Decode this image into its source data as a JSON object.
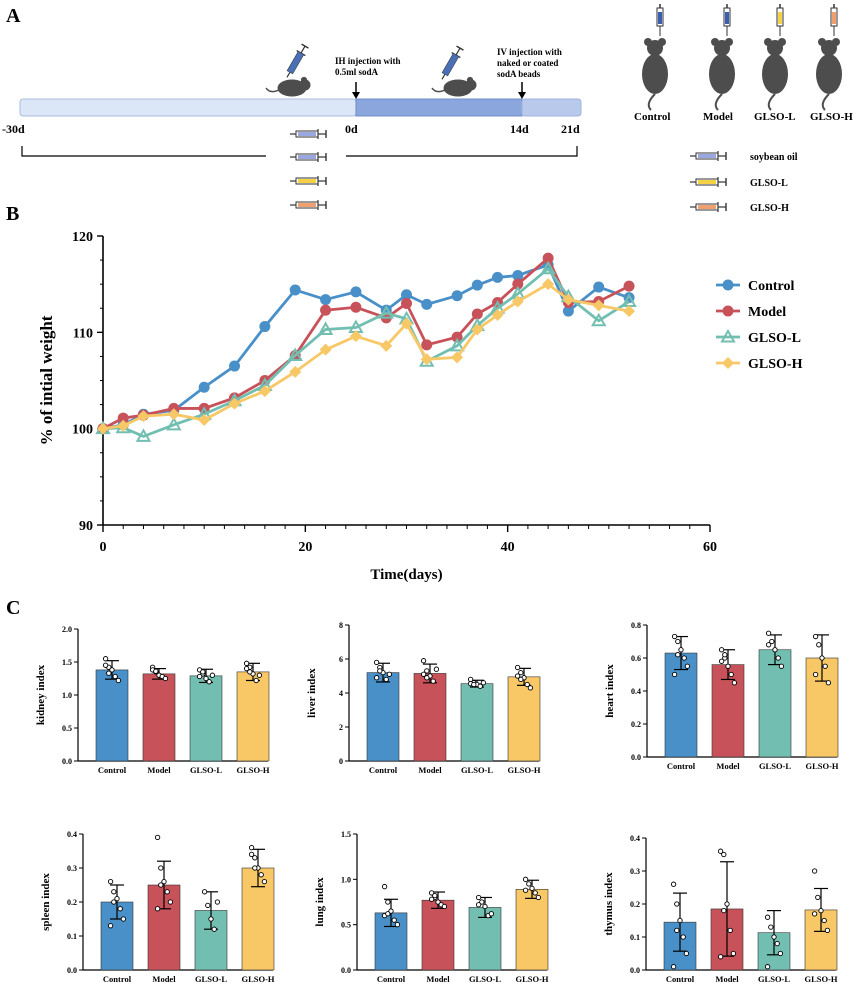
{
  "colors": {
    "control": "#4a90c8",
    "model": "#c8525a",
    "glso_l": "#72bfb1",
    "glso_h": "#f8c766",
    "timeline_light": "#dbe6f6",
    "timeline_dark": "#8aa6dc",
    "mouse": "#4d4d4d"
  },
  "panel_a": {
    "label": "A",
    "ih_note": [
      "IH injection with",
      "0.5ml sodA"
    ],
    "iv_note": [
      "IV injection with",
      "naked or coated",
      "sodA beads"
    ],
    "ticks": [
      "-30d",
      "0d",
      "14d",
      "21d"
    ],
    "legend_items": [
      "soybean oil",
      "GLSO-L",
      "GLSO-H"
    ],
    "groups": [
      "Control",
      "Model",
      "GLSO-L",
      "GLSO-H"
    ]
  },
  "panel_b": {
    "label": "B"
  },
  "panel_c": {
    "label": "C"
  },
  "chart_data": [
    {
      "id": "weight",
      "type": "line",
      "title": "",
      "xlabel": "Time(days)",
      "ylabel": "% of intial weight",
      "xlim": [
        0,
        60
      ],
      "ylim": [
        90,
        120
      ],
      "xticks": [
        0,
        20,
        40,
        60
      ],
      "yticks": [
        90,
        100,
        110,
        120
      ],
      "legend_position": "right",
      "series": [
        {
          "name": "Control",
          "marker": "circle",
          "x": [
            0,
            2,
            4,
            7,
            10,
            13,
            16,
            19,
            22,
            25,
            28,
            30,
            32,
            35,
            37,
            39,
            41,
            44,
            46,
            49,
            52
          ],
          "y": [
            100,
            100.4,
            101.5,
            101.9,
            104.3,
            106.5,
            110.6,
            114.4,
            113.4,
            114.2,
            112.3,
            113.9,
            112.9,
            113.8,
            114.9,
            115.7,
            115.9,
            117,
            112.2,
            114.7,
            113.6
          ]
        },
        {
          "name": "Model",
          "marker": "circle",
          "x": [
            0,
            2,
            4,
            7,
            10,
            13,
            16,
            19,
            22,
            25,
            28,
            30,
            32,
            35,
            37,
            39,
            41,
            44,
            46,
            49,
            52
          ],
          "y": [
            100,
            101.1,
            101.4,
            102.1,
            102.1,
            103.2,
            105,
            107.6,
            112.3,
            112.6,
            111.5,
            113,
            108.7,
            109.5,
            111.9,
            113.1,
            115,
            117.7,
            113.1,
            113.2,
            114.8
          ]
        },
        {
          "name": "GLSO-L",
          "marker": "triangle",
          "x": [
            0,
            2,
            4,
            7,
            10,
            13,
            16,
            19,
            22,
            25,
            28,
            30,
            32,
            35,
            37,
            39,
            41,
            44,
            46,
            49,
            52
          ],
          "y": [
            100,
            100.1,
            99.2,
            100.4,
            101.5,
            102.9,
            104.5,
            107.6,
            110.3,
            110.5,
            112,
            111.4,
            107,
            108.6,
            110.7,
            112.5,
            114,
            116.6,
            113.7,
            111.2,
            113.2
          ]
        },
        {
          "name": "GLSO-H",
          "marker": "diamond",
          "x": [
            0,
            2,
            4,
            7,
            10,
            13,
            16,
            19,
            22,
            25,
            28,
            30,
            32,
            35,
            37,
            39,
            41,
            44,
            46,
            49,
            52
          ],
          "y": [
            100,
            100.3,
            101.3,
            101.5,
            100.9,
            102.6,
            103.9,
            105.9,
            108.2,
            109.6,
            108.6,
            110.9,
            107.2,
            107.4,
            110.3,
            111.8,
            113.2,
            115,
            113.4,
            112.8,
            112.2
          ]
        }
      ]
    },
    {
      "id": "kidney",
      "type": "bar",
      "ylabel": "kidney index",
      "categories": [
        "Control",
        "Model",
        "GLSO-L",
        "GLSO-H"
      ],
      "values": [
        1.38,
        1.32,
        1.29,
        1.35
      ],
      "errors": [
        0.14,
        0.08,
        0.1,
        0.13
      ],
      "ylim": [
        0,
        2.0
      ],
      "yticks": [
        0.0,
        0.5,
        1.0,
        1.5,
        2.0
      ],
      "tick_decimals": 1,
      "points": [
        [
          1.55,
          1.42,
          1.38,
          1.28,
          1.22,
          1.45,
          1.33
        ],
        [
          1.42,
          1.35,
          1.3,
          1.28,
          1.25,
          1.38,
          1.36
        ],
        [
          1.38,
          1.32,
          1.25,
          1.2,
          1.3,
          1.28,
          1.35
        ],
        [
          1.48,
          1.42,
          1.32,
          1.22,
          1.3,
          1.4,
          1.35
        ]
      ]
    },
    {
      "id": "liver",
      "type": "bar",
      "ylabel": "liver index",
      "categories": [
        "Control",
        "Model",
        "GLSO-L",
        "GLSO-H"
      ],
      "values": [
        5.2,
        5.15,
        4.55,
        4.95
      ],
      "errors": [
        0.55,
        0.55,
        0.2,
        0.5
      ],
      "ylim": [
        0,
        8
      ],
      "yticks": [
        0,
        2,
        4,
        6,
        8
      ],
      "tick_decimals": 0,
      "points": [
        [
          5.8,
          5.5,
          5.2,
          4.8,
          5.1,
          4.9,
          5.3
        ],
        [
          5.9,
          5.3,
          5.0,
          4.7,
          5.4,
          5.1,
          4.9
        ],
        [
          4.8,
          4.6,
          4.5,
          4.4,
          4.6,
          4.55,
          4.5
        ],
        [
          5.5,
          5.2,
          4.9,
          4.5,
          4.3,
          5.0,
          4.8
        ]
      ]
    },
    {
      "id": "heart",
      "type": "bar",
      "ylabel": "heart index",
      "categories": [
        "Control",
        "Model",
        "GLSO-L",
        "GLSO-H"
      ],
      "values": [
        0.63,
        0.56,
        0.65,
        0.6
      ],
      "errors": [
        0.1,
        0.09,
        0.09,
        0.14
      ],
      "ylim": [
        0,
        0.8
      ],
      "yticks": [
        0.0,
        0.2,
        0.4,
        0.6,
        0.8
      ],
      "tick_decimals": 1,
      "points": [
        [
          0.73,
          0.7,
          0.65,
          0.6,
          0.55,
          0.5,
          0.62
        ],
        [
          0.65,
          0.6,
          0.55,
          0.5,
          0.45,
          0.58,
          0.62
        ],
        [
          0.75,
          0.7,
          0.65,
          0.6,
          0.55,
          0.68
        ],
        [
          0.73,
          0.68,
          0.6,
          0.55,
          0.45,
          0.5
        ]
      ]
    },
    {
      "id": "spleen",
      "type": "bar",
      "ylabel": "spleen index",
      "categories": [
        "Control",
        "Model",
        "GLSO-L",
        "GLSO-H"
      ],
      "values": [
        0.2,
        0.25,
        0.175,
        0.3
      ],
      "errors": [
        0.05,
        0.07,
        0.055,
        0.055
      ],
      "ylim": [
        0,
        0.4
      ],
      "yticks": [
        0.0,
        0.1,
        0.2,
        0.3,
        0.4
      ],
      "tick_decimals": 1,
      "points": [
        [
          0.26,
          0.23,
          0.21,
          0.18,
          0.15,
          0.13,
          0.2
        ],
        [
          0.39,
          0.3,
          0.26,
          0.23,
          0.2,
          0.18,
          0.25
        ],
        [
          0.23,
          0.19,
          0.15,
          0.12,
          0.2
        ],
        [
          0.36,
          0.33,
          0.3,
          0.28,
          0.26,
          0.34,
          0.3
        ]
      ]
    },
    {
      "id": "lung",
      "type": "bar",
      "ylabel": "lung index",
      "categories": [
        "Control",
        "Model",
        "GLSO-L",
        "GLSO-H"
      ],
      "values": [
        0.63,
        0.77,
        0.69,
        0.89
      ],
      "errors": [
        0.15,
        0.09,
        0.11,
        0.1
      ],
      "ylim": [
        0,
        1.5
      ],
      "yticks": [
        0.0,
        0.5,
        1.0,
        1.5
      ],
      "tick_decimals": 1,
      "points": [
        [
          0.92,
          0.75,
          0.65,
          0.55,
          0.5,
          0.6,
          0.62
        ],
        [
          0.85,
          0.8,
          0.75,
          0.72,
          0.7,
          0.78,
          0.82
        ],
        [
          0.8,
          0.75,
          0.7,
          0.6,
          0.62,
          0.72
        ],
        [
          1.0,
          0.95,
          0.9,
          0.85,
          0.8,
          0.88
        ]
      ]
    },
    {
      "id": "thymus",
      "type": "bar",
      "ylabel": "thymus index",
      "categories": [
        "Control",
        "Model",
        "GLSO-L",
        "GLSO-H"
      ],
      "values": [
        0.145,
        0.185,
        0.113,
        0.182
      ],
      "errors": [
        0.088,
        0.143,
        0.067,
        0.065
      ],
      "ylim": [
        0,
        0.4
      ],
      "yticks": [
        0.0,
        0.1,
        0.2,
        0.3,
        0.4
      ],
      "tick_decimals": 1,
      "points": [
        [
          0.26,
          0.2,
          0.15,
          0.1,
          0.05,
          0.01,
          0.12
        ],
        [
          0.36,
          0.35,
          0.2,
          0.12,
          0.05,
          0.04,
          0.18
        ],
        [
          0.16,
          0.13,
          0.1,
          0.08,
          0.05,
          0.01
        ],
        [
          0.3,
          0.22,
          0.18,
          0.15,
          0.12,
          0.17
        ]
      ]
    }
  ]
}
